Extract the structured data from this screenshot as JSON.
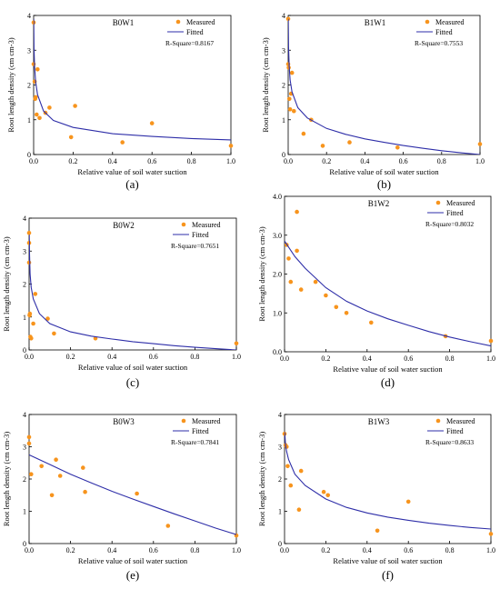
{
  "colors": {
    "measured": "#f7941d",
    "fitted": "#2e2ea8",
    "axis": "#000000"
  },
  "chart_data": [
    {
      "type": "scatter",
      "title": "B0W1",
      "caption": "(a)",
      "xlabel": "Relative value of soil water suction",
      "ylabel": "Root length density (cm cm-3)",
      "xlim": [
        0,
        1
      ],
      "ylim": [
        0,
        4
      ],
      "xticks": [
        "0.0",
        "0.2",
        "0.4",
        "0.6",
        "0.8",
        "1.0"
      ],
      "yticks": [
        "0",
        "1",
        "2",
        "3",
        "4"
      ],
      "legend": {
        "placement": "top-right",
        "measured": "Measured",
        "fitted": "Fitted"
      },
      "r_square": "R-Square=0.8167",
      "series": [
        {
          "name": "Measured",
          "kind": "points",
          "x": [
            0.0,
            0.0,
            0.005,
            0.008,
            0.01,
            0.015,
            0.02,
            0.03,
            0.06,
            0.08,
            0.19,
            0.21,
            0.45,
            0.6,
            1.0
          ],
          "y": [
            3.8,
            2.6,
            2.1,
            1.6,
            1.65,
            1.15,
            2.45,
            1.05,
            1.2,
            1.35,
            0.5,
            1.4,
            0.35,
            0.9,
            0.25
          ]
        },
        {
          "name": "Fitted",
          "kind": "curve",
          "x": [
            0.0005,
            0.002,
            0.005,
            0.01,
            0.02,
            0.05,
            0.1,
            0.2,
            0.4,
            0.6,
            0.8,
            1.0
          ],
          "y": [
            3.9,
            3.05,
            2.5,
            2.1,
            1.72,
            1.25,
            0.98,
            0.78,
            0.6,
            0.52,
            0.46,
            0.42
          ]
        }
      ]
    },
    {
      "type": "scatter",
      "title": "B1W1",
      "caption": "(b)",
      "xlabel": "Relative value of soil water suction",
      "ylabel": "Root length density (cm cm-3)",
      "xlim": [
        0,
        1
      ],
      "ylim": [
        0,
        4
      ],
      "xticks": [
        "0.0",
        "0.2",
        "0.4",
        "0.6",
        "0.8",
        "1.0"
      ],
      "yticks": [
        "0",
        "1",
        "2",
        "3",
        "4"
      ],
      "legend": {
        "placement": "top-right",
        "measured": "Measured",
        "fitted": "Fitted"
      },
      "r_square": "R-Square=0.7553",
      "series": [
        {
          "name": "Measured",
          "kind": "points",
          "x": [
            0.0,
            0.0,
            0.003,
            0.006,
            0.01,
            0.015,
            0.02,
            0.03,
            0.08,
            0.12,
            0.18,
            0.32,
            0.57,
            1.0
          ],
          "y": [
            3.9,
            2.6,
            2.5,
            1.6,
            1.3,
            1.75,
            2.35,
            1.25,
            0.6,
            1.0,
            0.25,
            0.35,
            0.2,
            0.3
          ]
        },
        {
          "name": "Fitted",
          "kind": "curve",
          "x": [
            0.0005,
            0.002,
            0.005,
            0.01,
            0.02,
            0.05,
            0.1,
            0.2,
            0.3,
            0.4,
            0.5,
            0.6,
            0.7,
            0.8,
            0.9,
            1.0
          ],
          "y": [
            3.9,
            3.1,
            2.55,
            2.15,
            1.8,
            1.35,
            1.05,
            0.75,
            0.58,
            0.45,
            0.35,
            0.26,
            0.18,
            0.11,
            0.05,
            0.0
          ]
        }
      ]
    },
    {
      "type": "scatter",
      "title": "B0W2",
      "caption": "(c)",
      "xlabel": "Relative value of soil water suction",
      "ylabel": "Root length density (cm cm-3)",
      "xlim": [
        0,
        1
      ],
      "ylim": [
        0,
        4
      ],
      "xticks": [
        "0.0",
        "0.2",
        "0.4",
        "0.6",
        "0.8",
        "1.0"
      ],
      "yticks": [
        "0",
        "1",
        "2",
        "3",
        "4"
      ],
      "legend": {
        "placement": "top-right",
        "measured": "Measured",
        "fitted": "Fitted"
      },
      "r_square": "R-Square=0.7651",
      "series": [
        {
          "name": "Measured",
          "kind": "points",
          "x": [
            0.0,
            0.0,
            0.0,
            0.002,
            0.004,
            0.006,
            0.01,
            0.02,
            0.03,
            0.09,
            0.12,
            0.32,
            1.0
          ],
          "y": [
            3.55,
            3.25,
            2.65,
            1.05,
            1.1,
            0.4,
            0.35,
            0.8,
            1.7,
            0.95,
            0.5,
            0.35,
            0.2
          ]
        },
        {
          "name": "Fitted",
          "kind": "curve",
          "x": [
            0.0008,
            0.002,
            0.005,
            0.01,
            0.02,
            0.05,
            0.1,
            0.2,
            0.3,
            0.4,
            0.5,
            0.6,
            0.7,
            0.8,
            0.9,
            1.0
          ],
          "y": [
            3.5,
            2.9,
            2.3,
            1.9,
            1.55,
            1.1,
            0.8,
            0.55,
            0.42,
            0.33,
            0.25,
            0.19,
            0.13,
            0.08,
            0.04,
            0.0
          ]
        }
      ]
    },
    {
      "type": "scatter",
      "title": "B1W2",
      "caption": "(d)",
      "xlabel": "Relative value of soil water suction",
      "ylabel": "Root length density (cm cm-3)",
      "xlim": [
        0,
        1
      ],
      "ylim": [
        0,
        4
      ],
      "xticks": [
        "0.0",
        "0.2",
        "0.4",
        "0.6",
        "0.8",
        "1.0"
      ],
      "yticks": [
        "0.0",
        "1.0",
        "2.0",
        "3.0",
        "4.0"
      ],
      "legend": {
        "placement": "top-right",
        "measured": "Measured",
        "fitted": "Fitted"
      },
      "r_square": "R-Square=0.8032",
      "series": [
        {
          "name": "Measured",
          "kind": "points",
          "x": [
            0.01,
            0.02,
            0.03,
            0.06,
            0.06,
            0.08,
            0.15,
            0.2,
            0.25,
            0.3,
            0.42,
            0.78,
            1.0
          ],
          "y": [
            2.75,
            2.4,
            1.8,
            3.6,
            2.6,
            1.6,
            1.8,
            1.45,
            1.15,
            1.0,
            0.75,
            0.4,
            0.28
          ]
        },
        {
          "name": "Fitted",
          "kind": "curve",
          "x": [
            0.0,
            0.05,
            0.1,
            0.2,
            0.3,
            0.4,
            0.5,
            0.6,
            0.7,
            0.8,
            0.9,
            1.0
          ],
          "y": [
            2.85,
            2.45,
            2.15,
            1.65,
            1.3,
            1.05,
            0.85,
            0.68,
            0.52,
            0.38,
            0.26,
            0.15
          ]
        }
      ]
    },
    {
      "type": "scatter",
      "title": "B0W3",
      "caption": "(e)",
      "xlabel": "Relative value of soil water suction",
      "ylabel": "Root length density (cm cm-3)",
      "xlim": [
        0,
        1
      ],
      "ylim": [
        0,
        4
      ],
      "xticks": [
        "0.0",
        "0.2",
        "0.4",
        "0.6",
        "0.8",
        "1.0"
      ],
      "yticks": [
        "0",
        "1",
        "2",
        "3",
        "4"
      ],
      "legend": {
        "placement": "top-right",
        "measured": "Measured",
        "fitted": "Fitted"
      },
      "r_square": "R-Square=0.7841",
      "series": [
        {
          "name": "Measured",
          "kind": "points",
          "x": [
            0.0,
            0.0,
            0.01,
            0.06,
            0.11,
            0.13,
            0.15,
            0.26,
            0.27,
            0.52,
            0.67,
            1.0
          ],
          "y": [
            3.3,
            3.1,
            2.15,
            2.4,
            1.5,
            2.6,
            2.1,
            2.35,
            1.6,
            1.55,
            0.55,
            0.25
          ]
        },
        {
          "name": "Fitted",
          "kind": "curve",
          "x": [
            0.0,
            0.1,
            0.2,
            0.3,
            0.4,
            0.5,
            0.6,
            0.7,
            0.8,
            0.9,
            1.0
          ],
          "y": [
            2.75,
            2.45,
            2.15,
            1.88,
            1.62,
            1.38,
            1.15,
            0.92,
            0.7,
            0.48,
            0.28
          ]
        }
      ]
    },
    {
      "type": "scatter",
      "title": "B1W3",
      "caption": "(f)",
      "xlabel": "Relative value of soil water suction",
      "ylabel": "Root length density (cm cm-3)",
      "xlim": [
        0,
        1
      ],
      "ylim": [
        0,
        4
      ],
      "xticks": [
        "0.0",
        "0.2",
        "0.4",
        "0.6",
        "0.8",
        "1.0"
      ],
      "yticks": [
        "0",
        "1",
        "2",
        "3",
        "4"
      ],
      "legend": {
        "placement": "top-right",
        "measured": "Measured",
        "fitted": "Fitted"
      },
      "r_square": "R-Square=0.8633",
      "series": [
        {
          "name": "Measured",
          "kind": "points",
          "x": [
            0.0,
            0.005,
            0.01,
            0.015,
            0.03,
            0.07,
            0.08,
            0.19,
            0.21,
            0.45,
            0.6,
            1.0
          ],
          "y": [
            3.4,
            3.05,
            3.0,
            2.4,
            1.8,
            1.05,
            2.25,
            1.6,
            1.5,
            0.4,
            1.3,
            0.3
          ]
        },
        {
          "name": "Fitted",
          "kind": "curve",
          "x": [
            0.001,
            0.005,
            0.01,
            0.02,
            0.05,
            0.1,
            0.2,
            0.3,
            0.4,
            0.5,
            0.6,
            0.7,
            0.8,
            0.9,
            1.0
          ],
          "y": [
            3.45,
            3.05,
            2.85,
            2.6,
            2.15,
            1.8,
            1.38,
            1.12,
            0.95,
            0.82,
            0.72,
            0.63,
            0.56,
            0.5,
            0.45
          ]
        }
      ]
    }
  ]
}
